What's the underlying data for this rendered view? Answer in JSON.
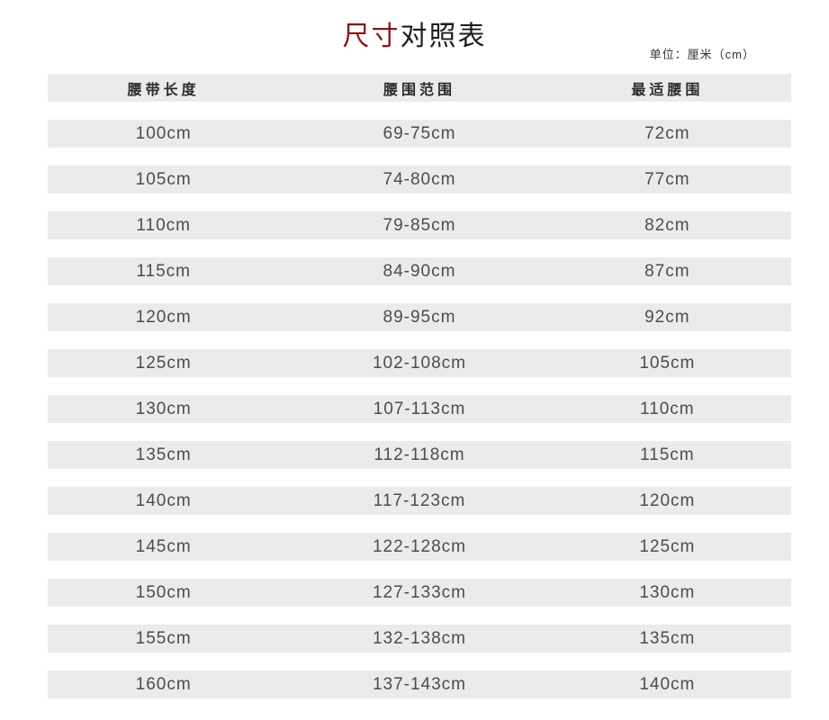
{
  "title": {
    "accent": "尺寸",
    "rest": "对照表"
  },
  "unit_note": "单位：厘米（cm）",
  "table": {
    "headers": [
      "腰带长度",
      "腰围范围",
      "最适腰围"
    ],
    "rows": [
      [
        "100cm",
        "69-75cm",
        "72cm"
      ],
      [
        "105cm",
        "74-80cm",
        "77cm"
      ],
      [
        "110cm",
        "79-85cm",
        "82cm"
      ],
      [
        "115cm",
        "84-90cm",
        "87cm"
      ],
      [
        "120cm",
        "89-95cm",
        "92cm"
      ],
      [
        "125cm",
        "102-108cm",
        "105cm"
      ],
      [
        "130cm",
        "107-113cm",
        "110cm"
      ],
      [
        "135cm",
        "112-118cm",
        "115cm"
      ],
      [
        "140cm",
        "117-123cm",
        "120cm"
      ],
      [
        "145cm",
        "122-128cm",
        "125cm"
      ],
      [
        "150cm",
        "127-133cm",
        "130cm"
      ],
      [
        "155cm",
        "132-138cm",
        "135cm"
      ],
      [
        "160cm",
        "137-143cm",
        "140cm"
      ]
    ]
  },
  "colors": {
    "accent_red": "#8c1618",
    "title_text": "#1c1c1c",
    "row_background": "#ebebeb",
    "header_text": "#2b2b2b",
    "data_text": "#4c4c4c"
  }
}
